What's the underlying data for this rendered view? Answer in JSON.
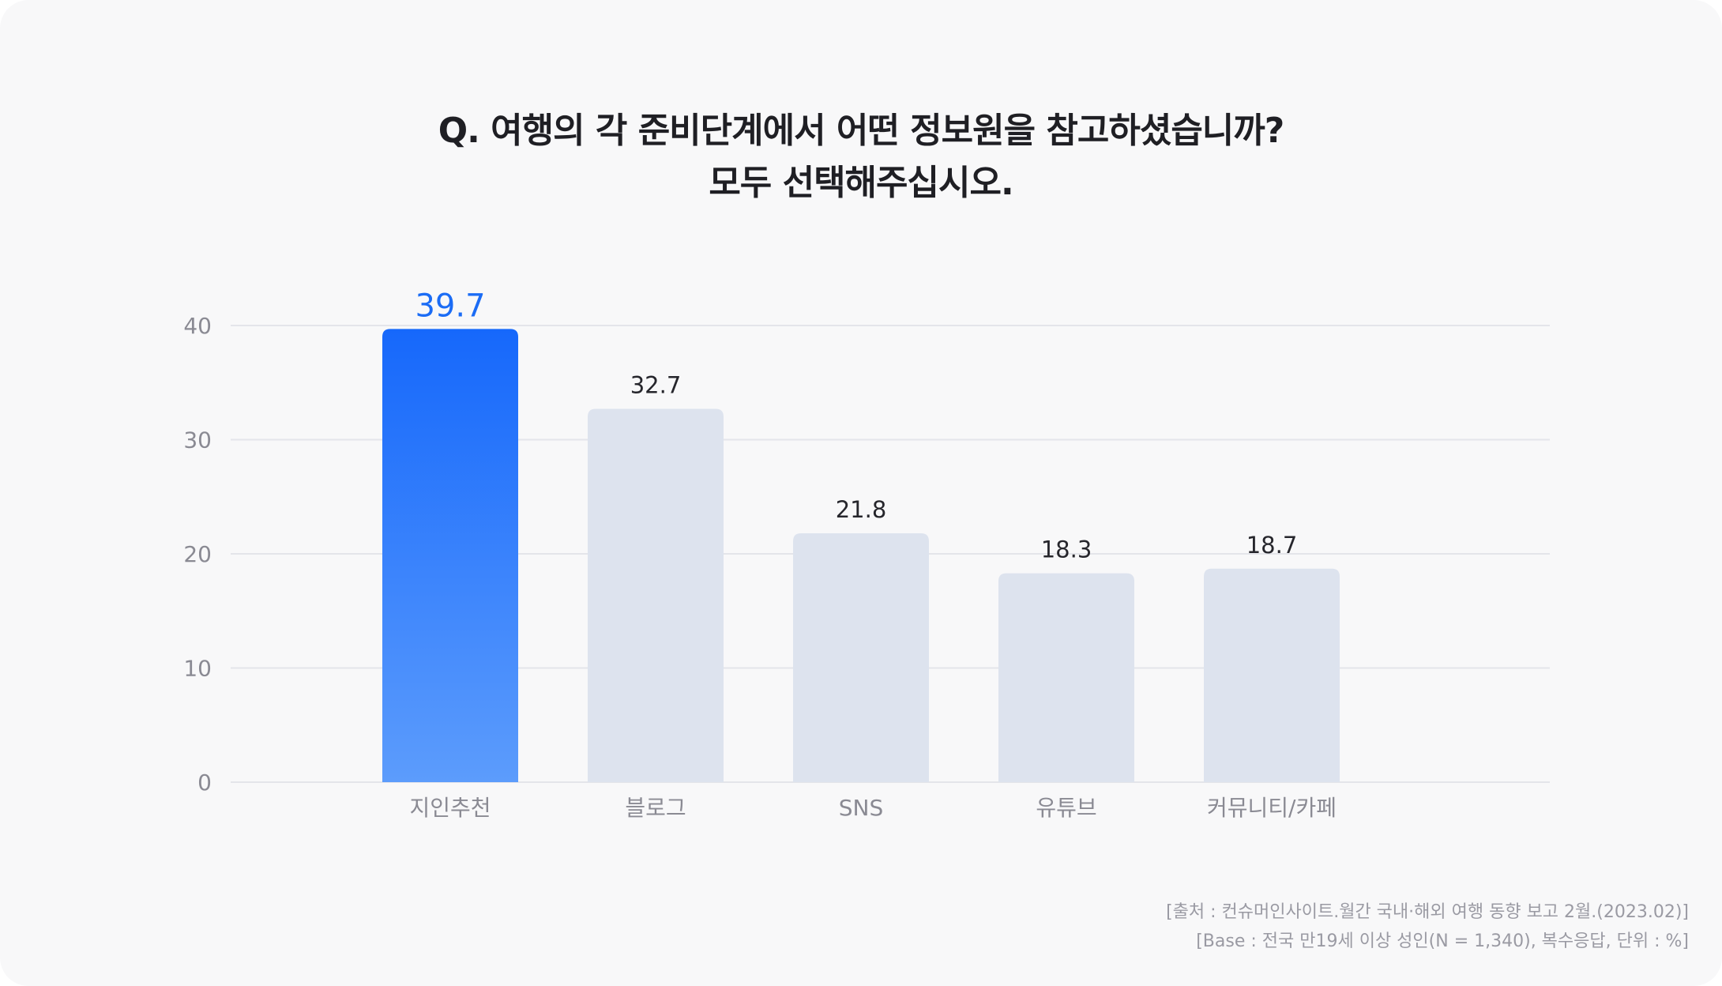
{
  "colors": {
    "highlight_top": "#1668fb",
    "highlight_bottom": "#5c9cfc",
    "bar": "#dde3ee",
    "grid": "#e4e5ea",
    "axis_text": "#8a8a93",
    "value_text": "#26262c",
    "highlight_text": "#1b6cf5"
  },
  "title": {
    "line1": "Q. 여행의 각 준비단계에서 어떤 정보원을 참고하셨습니까?",
    "line2": "모두 선택해주십시오."
  },
  "source": {
    "line1": "[출처 : 컨슈머인사이트.월간 국내·해외 여행 동향 보고 2월.(2023.02)]",
    "line2": "[Base : 전국 만19세 이상 성인(N = 1,340), 복수응답, 단위 : %]"
  },
  "chart_data": {
    "type": "bar",
    "categories": [
      "지인추천",
      "블로그",
      "SNS",
      "유튜브",
      "커뮤니티/카페"
    ],
    "values": [
      39.7,
      32.7,
      21.8,
      18.3,
      18.7
    ],
    "value_labels": [
      "39.7",
      "32.7",
      "21.8",
      "18.3",
      "18.7"
    ],
    "highlight_index": 0,
    "ylim": [
      0,
      40
    ],
    "yticks": [
      0,
      10,
      20,
      30,
      40
    ],
    "grid": true,
    "legend": "none"
  }
}
